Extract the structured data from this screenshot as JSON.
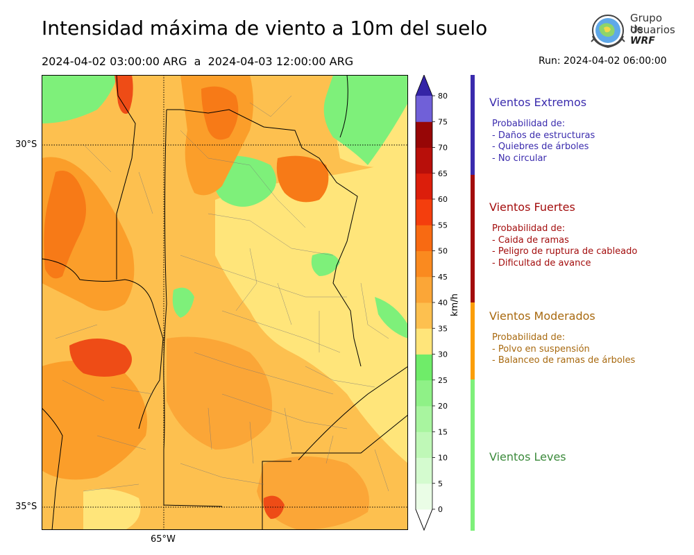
{
  "header": {
    "title": "Intensidad máxima de viento a 10m del suelo",
    "period": "2024-04-02 03:00:00 ARG  a  2024-04-03 12:00:00 ARG",
    "run": "Run: 2024-04-02 06:00:00"
  },
  "logo": {
    "line1": "Grupo de",
    "line2": "Usuarios",
    "line3": "WRF"
  },
  "map": {
    "lat_labels": [
      "30°S",
      "35°S"
    ],
    "lon_labels": [
      "65°W"
    ],
    "colors": {
      "light_green": "#a3f59a",
      "green": "#7ef07a",
      "yellow": "#ffe57a",
      "light_orange": "#fdc04f",
      "orange": "#fb9e2a",
      "dark_orange": "#f77a17",
      "red_orange": "#ee4c16",
      "red": "#d92a10"
    }
  },
  "colorbar": {
    "unit": "km/h",
    "ticks": [
      "0",
      "5",
      "10",
      "15",
      "20",
      "25",
      "30",
      "35",
      "40",
      "45",
      "50",
      "55",
      "60",
      "65",
      "70",
      "75",
      "80"
    ],
    "colors": [
      "#eafde6",
      "#d4fbcf",
      "#bff8b7",
      "#a8f59f",
      "#8ff187",
      "#6fec69",
      "#ffe57a",
      "#fdc04f",
      "#fba637",
      "#fa8a1f",
      "#f86a12",
      "#f43e0d",
      "#dc1e0b",
      "#b80f0a",
      "#970606",
      "#7060d8",
      "#5547c9",
      "#3b2fb3",
      "#3424a6"
    ]
  },
  "categories": [
    {
      "title": "Vientos Extremos",
      "color": "#3a2bad",
      "desc": [
        "Probabilidad de:",
        "- Daños de estructuras",
        "- Quiebres de árboles",
        "- No circular"
      ]
    },
    {
      "title": "Vientos Fuertes",
      "color": "#a30d0d",
      "desc": [
        "Probabilidad de:",
        "- Caida de ramas",
        "- Peligro de ruptura de cableado",
        "- Dificultad de avance"
      ]
    },
    {
      "title": "Vientos Moderados",
      "color": "#a8690f",
      "desc": [
        "Probabilidad de:",
        "- Polvo en suspensión",
        "- Balanceo de ramas de árboles"
      ]
    },
    {
      "title": "Vientos Leves",
      "color": "#3b8a3b",
      "desc": []
    }
  ]
}
